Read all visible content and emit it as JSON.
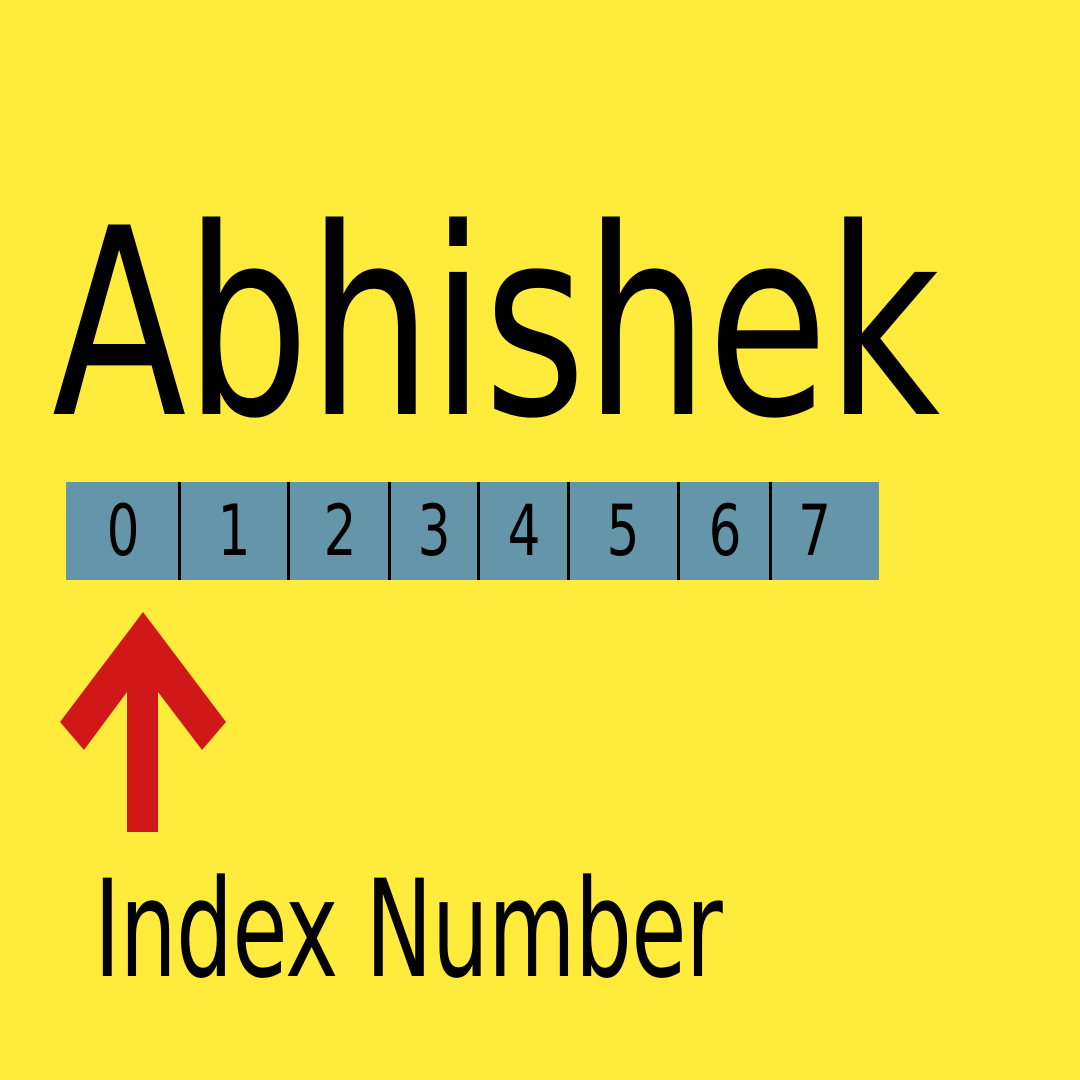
{
  "colors": {
    "background": "#FFEB3B",
    "strip": "#6495A8",
    "arrow": "#D01818",
    "text": "#000000"
  },
  "diagram": {
    "word": "Abhishek",
    "indices": [
      "0",
      "1",
      "2",
      "3",
      "4",
      "5",
      "6",
      "7"
    ],
    "caption": "Index Number",
    "arrow_icon": "up-arrow-icon"
  }
}
